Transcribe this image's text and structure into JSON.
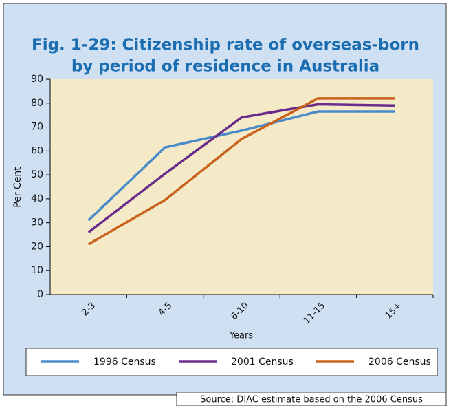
{
  "chart_data": {
    "type": "line",
    "title": [
      "Fig. 1-29: Citizenship rate of overseas-born",
      "by period of residence in Australia"
    ],
    "y_label": "Per Cent",
    "x_label": "Years",
    "source": "Source: DIAC estimate based on the 2006 Census",
    "categories": [
      "2-3",
      "4-5",
      "6-10",
      "11-15",
      "15+"
    ],
    "series": [
      {
        "name": "1996 Census",
        "color": "#4a8ac9",
        "values": [
          31,
          61.5,
          68.5,
          76.5,
          76.5
        ]
      },
      {
        "name": "2001 Census",
        "color": "#6a2c8a",
        "values": [
          26,
          50.5,
          74,
          79.5,
          79
        ]
      },
      {
        "name": "2006 Census",
        "color": "#c8621c",
        "values": [
          21,
          39.5,
          65,
          82,
          82
        ]
      }
    ],
    "ylim": [
      0,
      90
    ],
    "yticks": [
      0,
      10,
      20,
      30,
      40,
      50,
      60,
      70,
      80,
      90
    ],
    "legend": "bottom"
  }
}
